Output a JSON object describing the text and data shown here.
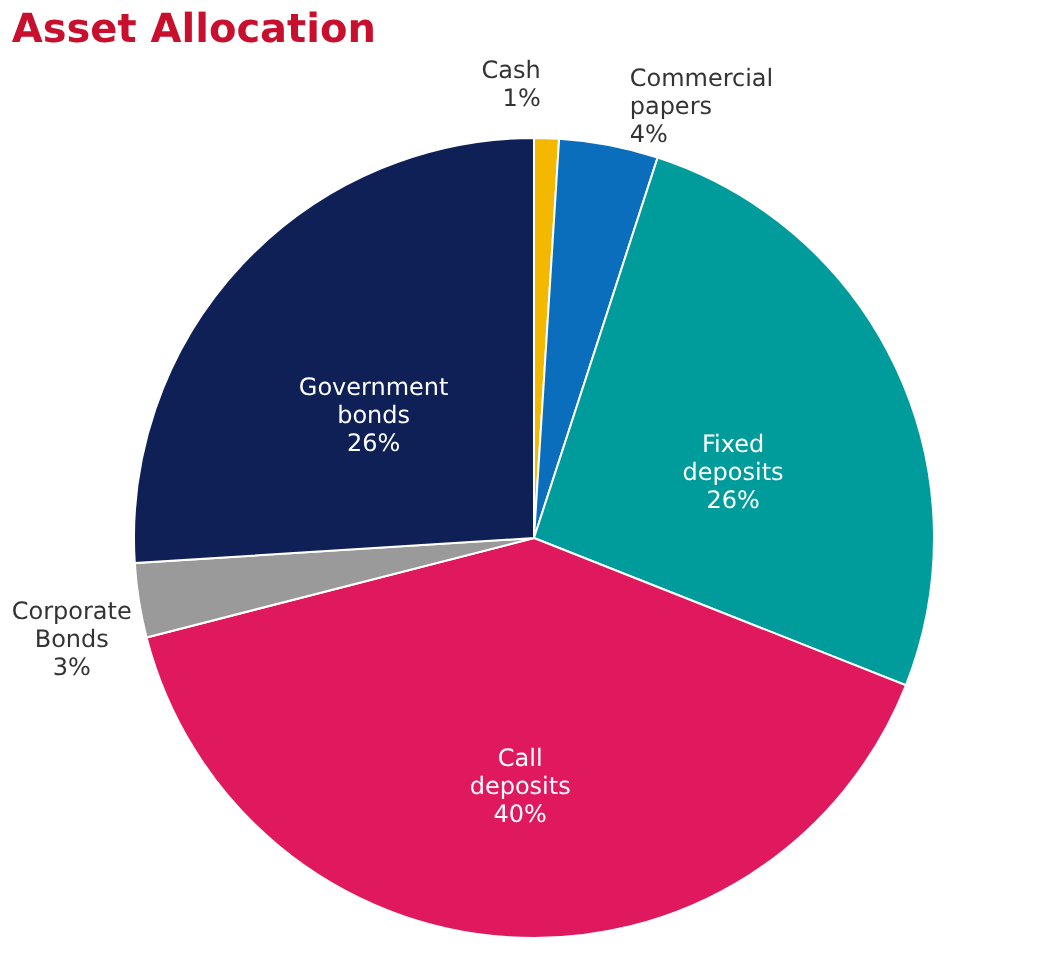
{
  "chart_data": {
    "type": "pie",
    "title": "Asset Allocation",
    "categories": [
      "Cash",
      "Commercial papers",
      "Fixed deposits",
      "Call deposits",
      "Corporate Bonds",
      "Government bonds"
    ],
    "values": [
      1,
      4,
      26,
      40,
      3,
      26
    ],
    "colors": [
      "#f5b800",
      "#0a6ebd",
      "#009b9b",
      "#e0195f",
      "#9a9a9a",
      "#0f2057"
    ],
    "value_labels": [
      "1%",
      "4%",
      "26%",
      "40%",
      "3%",
      "26%"
    ]
  }
}
